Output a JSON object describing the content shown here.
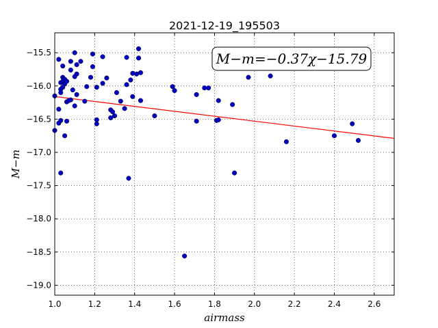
{
  "chart_data": {
    "type": "scatter",
    "title": "2021-12-19_195503",
    "xlabel": "airmass",
    "ylabel": "M−m",
    "xlim": [
      1.0,
      2.7
    ],
    "ylim": [
      -19.15,
      -15.2
    ],
    "x_ticks": [
      1.0,
      1.2,
      1.4,
      1.6,
      1.8,
      2.0,
      2.2,
      2.4,
      2.6
    ],
    "x_tick_labels": [
      "1.0",
      "1.2",
      "1.4",
      "1.6",
      "1.8",
      "2.0",
      "2.2",
      "2.4",
      "2.6"
    ],
    "y_ticks": [
      -15.5,
      -16.0,
      -16.5,
      -17.0,
      -17.5,
      -18.0,
      -18.5,
      -19.0
    ],
    "y_tick_labels": [
      "−15.5",
      "−16.0",
      "−16.5",
      "−17.0",
      "−17.5",
      "−18.0",
      "−18.5",
      "−19.0"
    ],
    "grid": true,
    "annotation": "M−m=−0.37χ−15.79",
    "annotation_placement": "top-right",
    "fit_line": {
      "slope": -0.37,
      "intercept": -15.79,
      "color": "#ff0000"
    },
    "point_color": "#0000c0",
    "points": [
      [
        1.0,
        -16.15
      ],
      [
        1.0,
        -16.67
      ],
      [
        1.02,
        -15.6
      ],
      [
        1.02,
        -16.35
      ],
      [
        1.02,
        -16.56
      ],
      [
        1.03,
        -16.52
      ],
      [
        1.03,
        -17.31
      ],
      [
        1.03,
        -15.95
      ],
      [
        1.03,
        -16.05
      ],
      [
        1.03,
        -16.1
      ],
      [
        1.04,
        -15.7
      ],
      [
        1.04,
        -15.87
      ],
      [
        1.04,
        -16.02
      ],
      [
        1.04,
        -15.93
      ],
      [
        1.05,
        -15.9
      ],
      [
        1.05,
        -15.97
      ],
      [
        1.05,
        -16.75
      ],
      [
        1.06,
        -16.53
      ],
      [
        1.06,
        -16.24
      ],
      [
        1.06,
        -15.93
      ],
      [
        1.07,
        -16.22
      ],
      [
        1.08,
        -15.76
      ],
      [
        1.08,
        -15.63
      ],
      [
        1.08,
        -16.21
      ],
      [
        1.09,
        -16.06
      ],
      [
        1.1,
        -15.5
      ],
      [
        1.1,
        -15.86
      ],
      [
        1.1,
        -16.3
      ],
      [
        1.11,
        -16.13
      ],
      [
        1.11,
        -15.68
      ],
      [
        1.11,
        -15.82
      ],
      [
        1.13,
        -15.63
      ],
      [
        1.15,
        -16.23
      ],
      [
        1.16,
        -16.01
      ],
      [
        1.18,
        -15.87
      ],
      [
        1.19,
        -15.52
      ],
      [
        1.19,
        -15.71
      ],
      [
        1.21,
        -16.51
      ],
      [
        1.21,
        -16.57
      ],
      [
        1.21,
        -16.02
      ],
      [
        1.24,
        -15.96
      ],
      [
        1.24,
        -15.56
      ],
      [
        1.26,
        -15.88
      ],
      [
        1.28,
        -16.36
      ],
      [
        1.28,
        -16.48
      ],
      [
        1.29,
        -16.39
      ],
      [
        1.3,
        -16.45
      ],
      [
        1.31,
        -16.1
      ],
      [
        1.33,
        -16.23
      ],
      [
        1.35,
        -16.34
      ],
      [
        1.36,
        -15.98
      ],
      [
        1.36,
        -15.57
      ],
      [
        1.37,
        -17.39
      ],
      [
        1.38,
        -15.91
      ],
      [
        1.39,
        -15.81
      ],
      [
        1.39,
        -16.16
      ],
      [
        1.41,
        -15.82
      ],
      [
        1.42,
        -15.44
      ],
      [
        1.42,
        -15.58
      ],
      [
        1.43,
        -15.8
      ],
      [
        1.43,
        -16.22
      ],
      [
        1.5,
        -16.45
      ],
      [
        1.59,
        -16.01
      ],
      [
        1.6,
        -16.07
      ],
      [
        1.65,
        -18.56
      ],
      [
        1.71,
        -16.13
      ],
      [
        1.71,
        -16.53
      ],
      [
        1.75,
        -16.03
      ],
      [
        1.77,
        -16.03
      ],
      [
        1.81,
        -16.52
      ],
      [
        1.82,
        -16.51
      ],
      [
        1.82,
        -16.22
      ],
      [
        1.89,
        -16.28
      ],
      [
        1.9,
        -17.31
      ],
      [
        1.97,
        -15.87
      ],
      [
        2.08,
        -15.85
      ],
      [
        2.16,
        -16.84
      ],
      [
        2.4,
        -16.75
      ],
      [
        2.49,
        -16.57
      ],
      [
        2.52,
        -16.82
      ]
    ]
  }
}
